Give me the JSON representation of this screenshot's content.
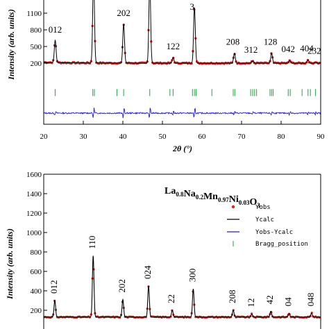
{
  "chart_data": [
    {
      "type": "line",
      "title": "",
      "xlabel": "2θ (°)",
      "ylabel": "Intensity (arb. units)",
      "xlim": [
        20,
        90
      ],
      "ylim": [
        -900,
        1350
      ],
      "x_ticks": [
        "20",
        "30",
        "40",
        "50",
        "60",
        "70",
        "80",
        "90"
      ],
      "y_ticks": [
        {
          "value": 200,
          "label": "200"
        },
        {
          "value": 500,
          "label": "500"
        },
        {
          "value": 800,
          "label": "800"
        },
        {
          "value": 1100,
          "label": "1100"
        }
      ],
      "background": 200,
      "difference_offset": -700,
      "bragg_row": -330,
      "peaks": [
        {
          "label": "012",
          "two_theta": 22.9,
          "intensity": 600,
          "label_x": 22.9
        },
        {
          "label": "",
          "two_theta": 32.6,
          "intensity": 1800,
          "label_x": 32.6
        },
        {
          "label": "202",
          "two_theta": 40.2,
          "intensity": 900,
          "label_x": 40.2
        },
        {
          "label": "",
          "two_theta": 46.8,
          "intensity": 1700,
          "label_x": 46.8
        },
        {
          "label": "122",
          "two_theta": 52.7,
          "intensity": 300,
          "label_x": 52.7
        },
        {
          "label": "3",
          "two_theta": 58.1,
          "intensity": 1200,
          "label_x": 57.5
        },
        {
          "label": "208",
          "two_theta": 68.2,
          "intensity": 380,
          "label_x": 67.8
        },
        {
          "label": "312",
          "two_theta": 72.8,
          "intensity": 240,
          "label_x": 72.4
        },
        {
          "label": "128",
          "two_theta": 77.6,
          "intensity": 380,
          "label_x": 77.3
        },
        {
          "label": "042",
          "two_theta": 82.2,
          "intensity": 250,
          "label_x": 81.8
        },
        {
          "label": "404",
          "two_theta": 86.8,
          "intensity": 260,
          "label_x": 86.5
        },
        {
          "label": "232",
          "two_theta": 88.7,
          "intensity": 220,
          "label_x": 88.4
        }
      ],
      "bragg_positions": [
        22.9,
        32.4,
        32.8,
        38.5,
        40.2,
        46.8,
        51.9,
        52.7,
        57.6,
        58.1,
        58.5,
        62.5,
        67.9,
        68.3,
        72.3,
        72.8,
        73.3,
        73.8,
        77.2,
        77.6,
        78.0,
        81.8,
        82.3,
        85.3,
        86.8,
        87.4,
        88.7
      ]
    },
    {
      "type": "line",
      "title": "",
      "xlabel": "",
      "ylabel": "Intensity (arb. units)",
      "formula": {
        "parts": [
          {
            "t": "La",
            "sub": "0.8"
          },
          {
            "t": "Na",
            "sub": "0.2"
          },
          {
            "t": "Mn",
            "sub": "0.97"
          },
          {
            "t": "Ni",
            "sub": "0.03"
          },
          {
            "t": "O",
            "sub": "3"
          }
        ]
      },
      "xlim": [
        20,
        90
      ],
      "ylim": [
        0,
        1600
      ],
      "y_ticks": [
        {
          "value": 200,
          "label": "200"
        },
        {
          "value": 400,
          "label": "400"
        },
        {
          "value": 600,
          "label": "600"
        },
        {
          "value": 800,
          "label": "800"
        },
        {
          "value": 1000,
          "label": "1000"
        },
        {
          "value": 1200,
          "label": "1200"
        },
        {
          "value": 1400,
          "label": "1400"
        },
        {
          "value": 1600,
          "label": "1600"
        }
      ],
      "background": 130,
      "legend": [
        {
          "name": "Yobs",
          "color": "#e02020",
          "marker": "dot"
        },
        {
          "name": "Ycalc",
          "color": "#000000",
          "marker": "line"
        },
        {
          "name": "Yobs-Ycalc",
          "color": "#2020d0",
          "marker": "line"
        },
        {
          "name": "Bragg_position",
          "color": "#20a040",
          "marker": "bar"
        }
      ],
      "legend_position": "top-right",
      "peaks": [
        {
          "label": "012",
          "two_theta": 22.8,
          "intensity": 300,
          "label_x": 22.8
        },
        {
          "label": "110",
          "two_theta": 32.5,
          "intensity": 760,
          "label_x": 32.5
        },
        {
          "label": "202",
          "two_theta": 40.0,
          "intensity": 310,
          "label_x": 40.0
        },
        {
          "label": "024",
          "two_theta": 46.5,
          "intensity": 450,
          "label_x": 46.5
        },
        {
          "label": "22",
          "two_theta": 52.5,
          "intensity": 200,
          "label_x": 52.5
        },
        {
          "label": "300",
          "two_theta": 57.8,
          "intensity": 420,
          "label_x": 57.8
        },
        {
          "label": "208",
          "two_theta": 67.9,
          "intensity": 200,
          "label_x": 67.9
        },
        {
          "label": "12",
          "two_theta": 72.6,
          "intensity": 160,
          "label_x": 72.6
        },
        {
          "label": "42",
          "two_theta": 77.4,
          "intensity": 190,
          "label_x": 77.4
        },
        {
          "label": "04",
          "two_theta": 82.0,
          "intensity": 170,
          "label_x": 82.0
        },
        {
          "label": "048",
          "two_theta": 87.7,
          "intensity": 170,
          "label_x": 87.7
        }
      ]
    }
  ]
}
